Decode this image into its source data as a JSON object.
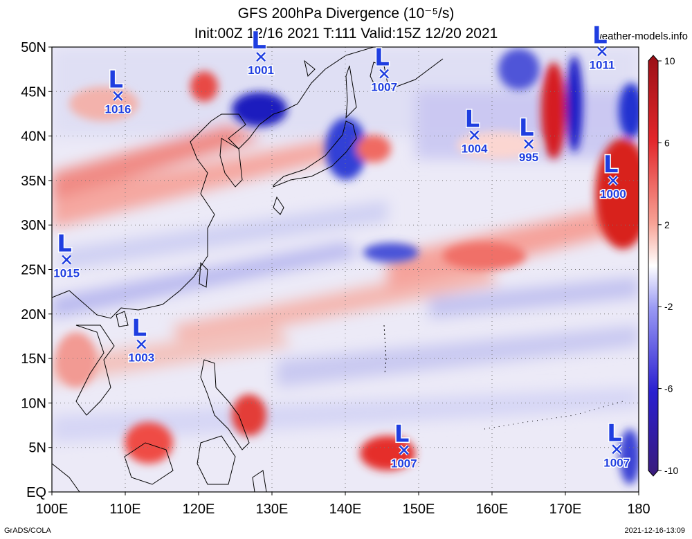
{
  "title_line1": "GFS 200hPa Divergence (10⁻⁵/s)",
  "title_line2": "Init:00Z 12/16 2021 T:111 Valid:15Z 12/20 2021",
  "site": "weather-models.info",
  "footer_left": "GrADS/COLA",
  "footer_right": "2021-12-16-13:09",
  "lat_labels": [
    "50N",
    "45N",
    "40N",
    "35N",
    "30N",
    "25N",
    "20N",
    "15N",
    "10N",
    "5N",
    "EQ"
  ],
  "lon_labels": [
    "100E",
    "110E",
    "120E",
    "130E",
    "140E",
    "150E",
    "160E",
    "170E",
    "180"
  ],
  "colorbar": {
    "labels": [
      "10",
      "6",
      "2",
      "-2",
      "-6",
      "-10"
    ],
    "colors": [
      "#9a0f16",
      "#e2262b",
      "#f79a8c",
      "#ffffff",
      "#8a8af2",
      "#2a1fd0",
      "#3a1b7a"
    ]
  },
  "lows": [
    {
      "lon": 109.0,
      "lat": 44.5,
      "value": "1016"
    },
    {
      "lon": 128.5,
      "lat": 48.9,
      "value": "1001"
    },
    {
      "lon": 145.3,
      "lat": 47.0,
      "value": "1007"
    },
    {
      "lon": 175.0,
      "lat": 49.5,
      "value": "1011"
    },
    {
      "lon": 157.6,
      "lat": 40.1,
      "value": "1004"
    },
    {
      "lon": 165.0,
      "lat": 39.1,
      "value": "995"
    },
    {
      "lon": 176.5,
      "lat": 35.0,
      "value": "1000"
    },
    {
      "lon": 102.0,
      "lat": 26.1,
      "value": "1015"
    },
    {
      "lon": 112.2,
      "lat": 16.6,
      "value": "1003"
    },
    {
      "lon": 148.0,
      "lat": 4.7,
      "value": "1007"
    },
    {
      "lon": 177.0,
      "lat": 4.8,
      "value": "1007"
    }
  ],
  "colors": {
    "low_marker": "#1f3ee0"
  }
}
